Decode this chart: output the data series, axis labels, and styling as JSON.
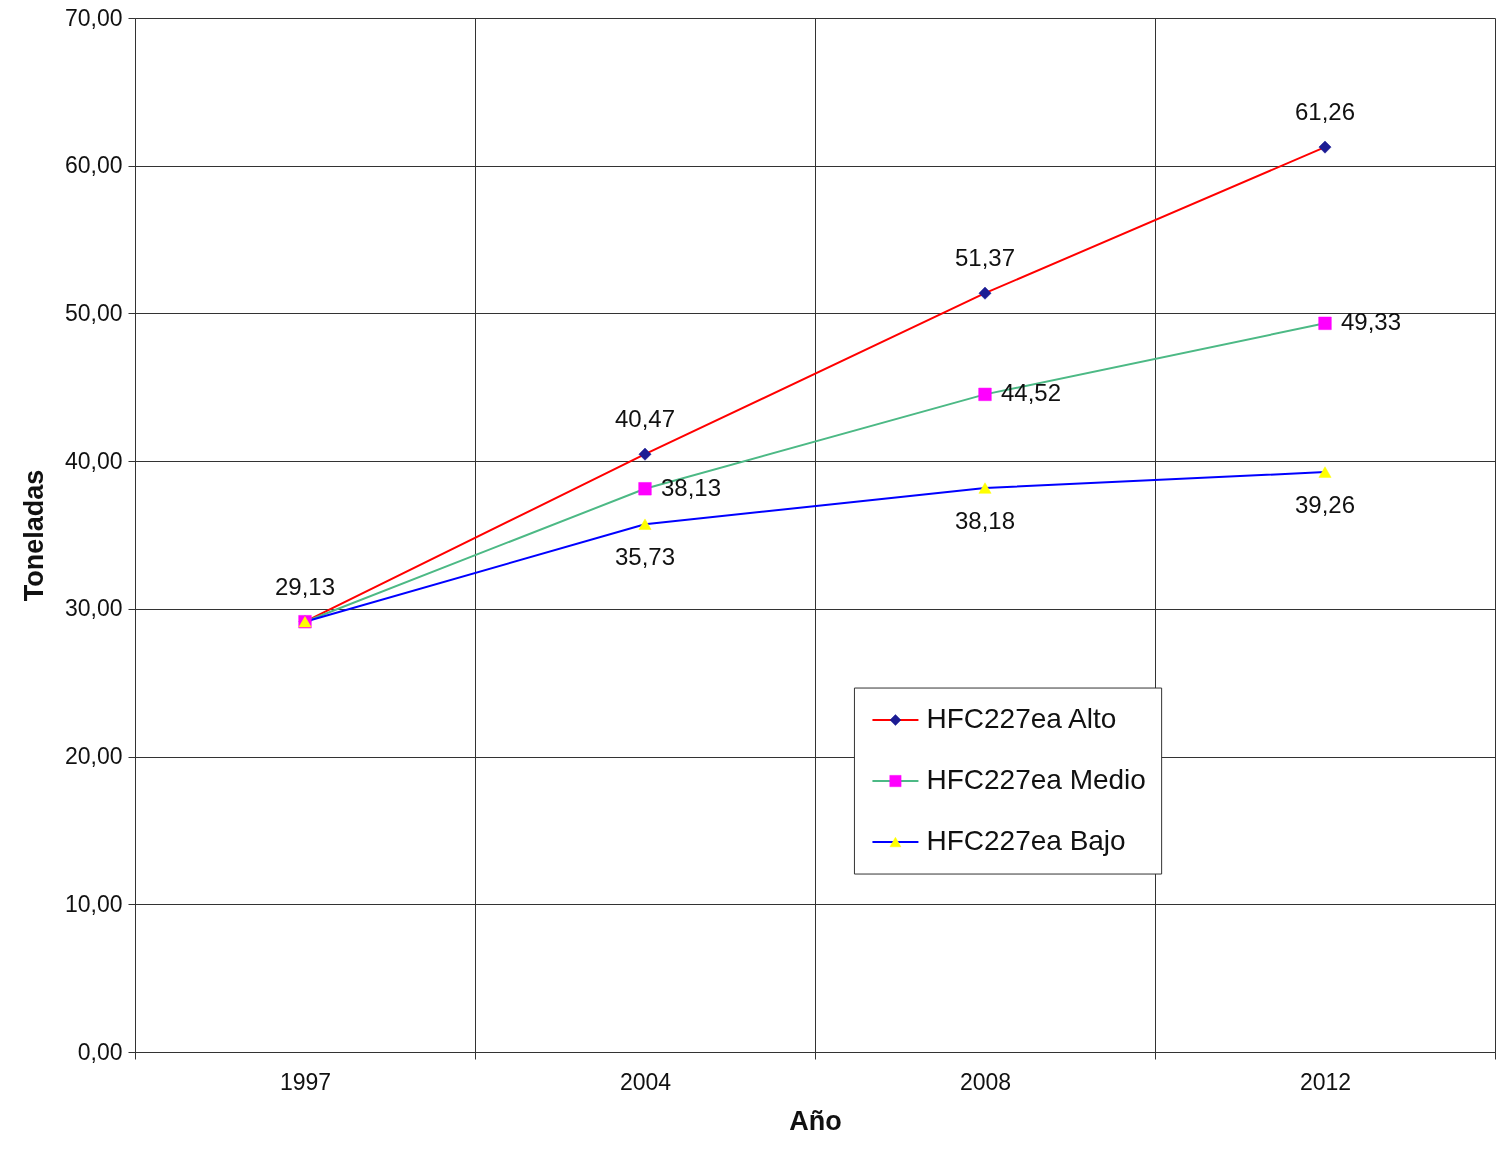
{
  "chart_data": {
    "type": "line",
    "xlabel": "Año",
    "ylabel": "Toneladas",
    "categories": [
      "1997",
      "2004",
      "2008",
      "2012"
    ],
    "ylim": [
      0,
      70
    ],
    "yticks": [
      {
        "value": 0,
        "label": "0,00"
      },
      {
        "value": 10,
        "label": "10,00"
      },
      {
        "value": 20,
        "label": "20,00"
      },
      {
        "value": 30,
        "label": "30,00"
      },
      {
        "value": 40,
        "label": "40,00"
      },
      {
        "value": 50,
        "label": "50,00"
      },
      {
        "value": 60,
        "label": "60,00"
      },
      {
        "value": 70,
        "label": "70,00"
      }
    ],
    "grid": true,
    "legend": "bottom right",
    "line_style": "solid",
    "series": [
      {
        "name": "HFC227ea Alto",
        "color": "#ff0000",
        "marker": "diamond",
        "colors": [
          "#1c1c94",
          "#1c1c94",
          "#1c1c94",
          "#1c1c94"
        ],
        "values": [
          29.13,
          40.47,
          51.37,
          61.26
        ],
        "value_labels": [
          "29,13",
          "40,47",
          "51,37",
          "61,26"
        ]
      },
      {
        "name": "HFC227ea Medio",
        "color": "#4cb985",
        "marker": "square",
        "colors": [
          "#ff00ff",
          "#ff00ff",
          "#ff00ff",
          "#ff00ff"
        ],
        "values": [
          29.13,
          38.13,
          44.52,
          49.33
        ],
        "value_labels": [
          null,
          "38,13",
          "44,52",
          "49,33"
        ]
      },
      {
        "name": "HFC227ea Bajo",
        "color": "#0000ff",
        "marker": "triangle",
        "colors": [
          "#ffff00",
          "#ffff00",
          "#ffff00",
          "#ffff00"
        ],
        "values": [
          29.13,
          35.73,
          38.18,
          39.26
        ],
        "value_labels": [
          null,
          "35,73",
          "38,18",
          "39,26"
        ]
      }
    ]
  }
}
